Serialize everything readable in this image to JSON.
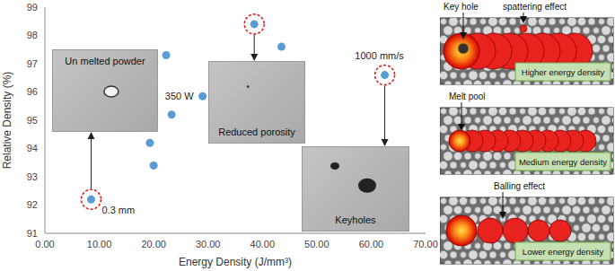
{
  "chart_data": {
    "type": "scatter",
    "x_label": "Energy Density (J/mm³)",
    "y_label": "Relative Density (%)",
    "color": "#5b9bd5",
    "x": [
      8.5,
      19.3,
      20.0,
      22.3,
      23.3,
      29.0,
      38.5,
      43.5,
      62.5
    ],
    "values": [
      92.2,
      94.2,
      93.4,
      97.3,
      95.2,
      95.85,
      98.4,
      97.6,
      96.6
    ],
    "point_labels": [
      "0.3 mm",
      null,
      null,
      null,
      null,
      "350 W",
      null,
      null,
      "1000 mm/s"
    ],
    "xlim": [
      0,
      70
    ],
    "xticks": [
      {
        "value": 0,
        "label": "0.00"
      },
      {
        "value": 10,
        "label": "10.00"
      },
      {
        "value": 20,
        "label": "20.00"
      },
      {
        "value": 30,
        "label": "30.00"
      },
      {
        "value": 40,
        "label": "40.00"
      },
      {
        "value": 50,
        "label": "50.00"
      },
      {
        "value": 60,
        "label": "60.00"
      },
      {
        "value": 70,
        "label": "70.00"
      }
    ],
    "ylim": [
      91,
      99
    ],
    "yticks": [
      91,
      92,
      93,
      94,
      95,
      96,
      97,
      98,
      99
    ],
    "grid": false,
    "insets": [
      {
        "text": "Un melted powder",
        "point": 0
      },
      {
        "text": "Reduced porosity",
        "point": 6
      },
      {
        "text": "Keyholes",
        "point": 8
      }
    ]
  },
  "schematic": [
    {
      "label": "Higher energy density",
      "annotations": [
        "Key hole",
        "spattering effect"
      ]
    },
    {
      "label": "Medium energy density",
      "annotations": [
        "Melt pool"
      ]
    },
    {
      "label": "Lower energy density",
      "annotations": [
        "Balling effect"
      ]
    }
  ]
}
